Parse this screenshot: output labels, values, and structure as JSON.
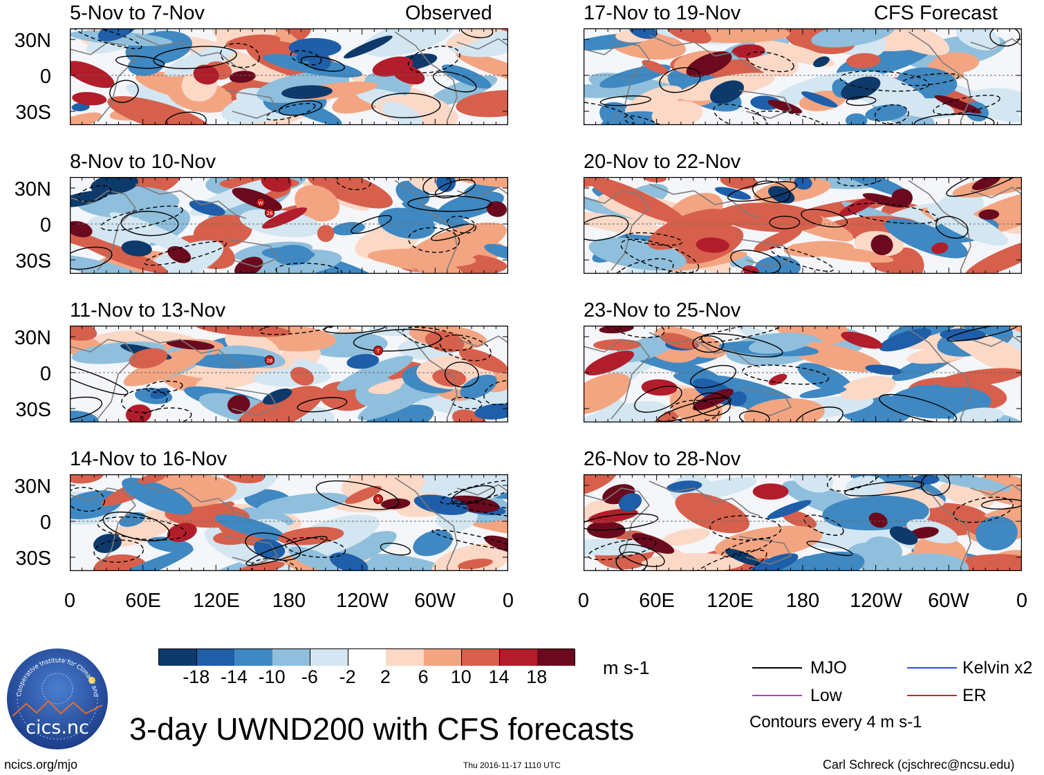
{
  "title": "3-day UWND200 with CFS forecasts",
  "columns": {
    "left": "Observed",
    "right": "CFS Forecast"
  },
  "panels_left": [
    "5-Nov to 7-Nov",
    "8-Nov to 10-Nov",
    "11-Nov to 13-Nov",
    "14-Nov to 16-Nov"
  ],
  "panels_right": [
    "17-Nov to 19-Nov",
    "20-Nov to 22-Nov",
    "23-Nov to 25-Nov",
    "26-Nov to 28-Nov"
  ],
  "y_ticks": [
    "30N",
    "0",
    "30S"
  ],
  "x_ticks": [
    "0",
    "60E",
    "120E",
    "180",
    "120W",
    "60W",
    "0"
  ],
  "colorbar": {
    "unit": "m s-1",
    "labels": [
      "-18",
      "-14",
      "-10",
      "-6",
      "-2",
      "2",
      "6",
      "10",
      "14",
      "18"
    ],
    "colors": [
      "#0d3a6b",
      "#1f5ea8",
      "#3f88c2",
      "#8fbfdc",
      "#d3e6f2",
      "#ffffff",
      "#fcd8c6",
      "#f3a582",
      "#d7604d",
      "#b21d2b",
      "#6b0a1e"
    ]
  },
  "legend": {
    "items": [
      {
        "label": "MJO",
        "color": "#000000"
      },
      {
        "label": "Kelvin x2",
        "color": "#2a4fd6"
      },
      {
        "label": "Low",
        "color": "#a040e0"
      },
      {
        "label": "ER",
        "color": "#d42020"
      }
    ],
    "contours_note": "Contours every 4 m s-1"
  },
  "logo": {
    "text": "cics.nc",
    "ring_text": "Cooperative Institute for Climate and Satellites"
  },
  "footer": {
    "left": "ncics.org/mjo",
    "center": "Thu 2016-11-17 1110 UTC",
    "right": "Carl Schreck (cjschrec@ncsu.edu)"
  },
  "storm_markers": [
    {
      "panel": 1,
      "labels": [
        "W",
        "26"
      ]
    },
    {
      "panel": 2,
      "labels": [
        "26",
        "T"
      ]
    },
    {
      "panel": 3,
      "labels": [
        "T"
      ]
    }
  ],
  "chart_data": {
    "type": "heatmap",
    "variable": "200-hPa zonal wind anomaly",
    "units": "m s-1",
    "x_range_deg_lon": [
      0,
      360
    ],
    "y_range_deg_lat": [
      -40,
      40
    ],
    "contour_interval": 4,
    "levels": [
      -18,
      -14,
      -10,
      -6,
      -2,
      2,
      6,
      10,
      14,
      18
    ]
  }
}
